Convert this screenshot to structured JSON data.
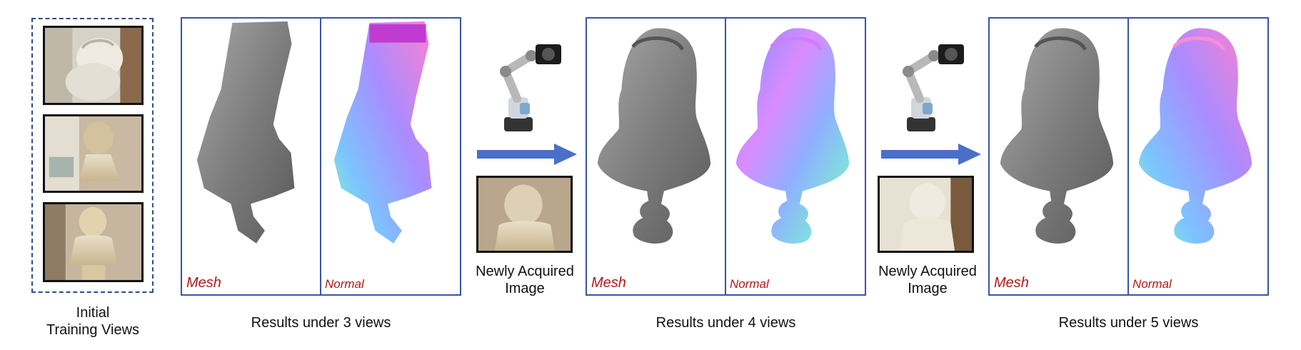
{
  "training": {
    "caption": "Initial\nTraining Views"
  },
  "panels": [
    {
      "mesh_label": "Mesh",
      "normal_label": "Normal",
      "caption": "Results under 3 views"
    },
    {
      "mesh_label": "Mesh",
      "normal_label": "Normal",
      "caption": "Results under 4 views"
    },
    {
      "mesh_label": "Mesh",
      "normal_label": "Normal",
      "caption": "Results under 5 views"
    }
  ],
  "acquisitions": [
    {
      "caption": "Newly Acquired\nImage"
    },
    {
      "caption": "Newly Acquired\nImage"
    }
  ],
  "colors": {
    "panel_border": "#3a55a6",
    "arrow": "#4a6fc7",
    "label_red": "#b01818",
    "dashed_border": "#2f4f8a"
  },
  "icons": [
    "robot-arm-camera-icon",
    "right-arrow-icon"
  ]
}
